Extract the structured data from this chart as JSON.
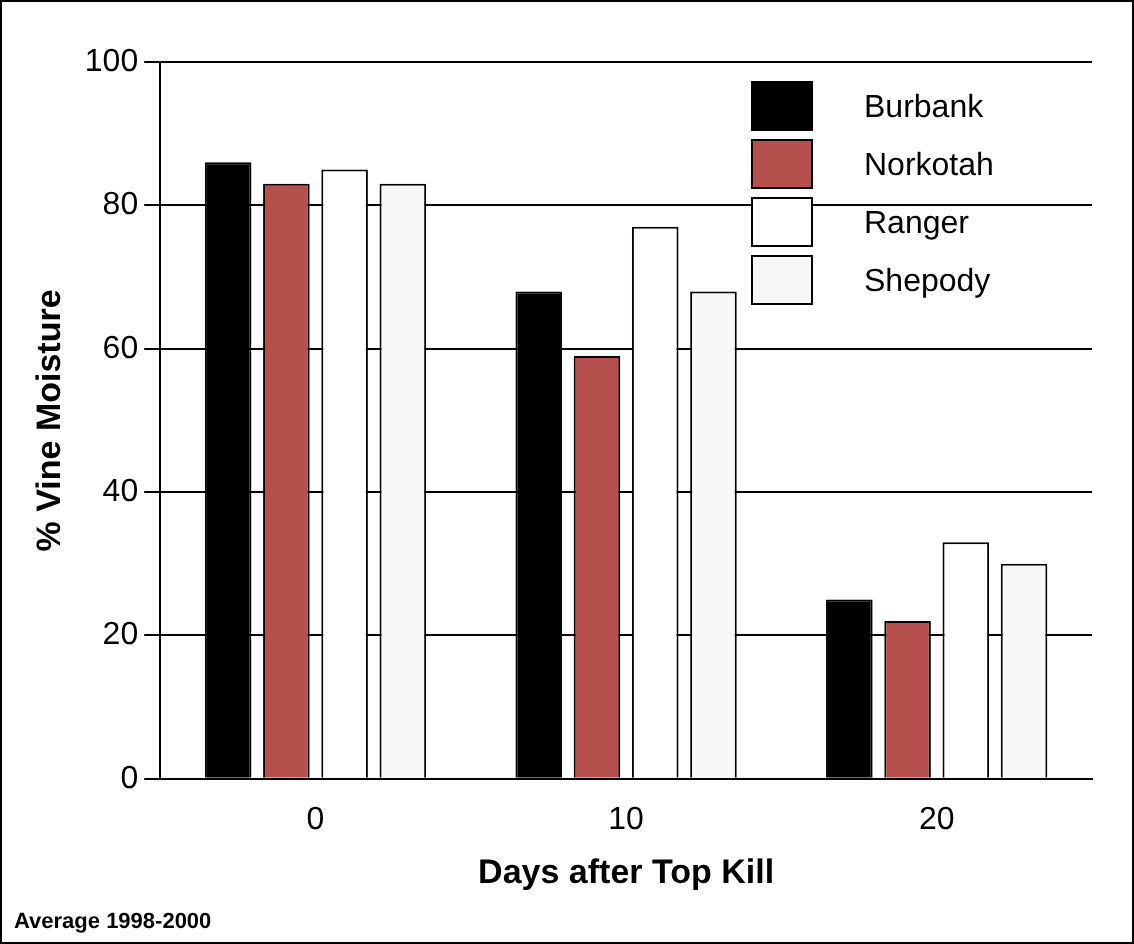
{
  "chart_data": {
    "type": "bar",
    "xlabel": "Days after Top Kill",
    "ylabel": "% Vine Moisture",
    "categories": [
      "0",
      "10",
      "20"
    ],
    "series": [
      {
        "name": "Burbank",
        "color": "#000000",
        "values": [
          86,
          68,
          25
        ]
      },
      {
        "name": "Norkotah",
        "color": "#b5504c",
        "values": [
          83,
          59,
          22
        ]
      },
      {
        "name": "Ranger",
        "color": "#ffffff",
        "values": [
          85,
          77,
          33
        ]
      },
      {
        "name": "Shepody",
        "color": "#f7f7f7",
        "values": [
          83,
          68,
          30
        ]
      }
    ],
    "ylim": [
      0,
      100
    ],
    "yticks": [
      0,
      20,
      40,
      60,
      80,
      100
    ],
    "grid": "y",
    "legend": "top right",
    "annotations": [
      "Average 1998-2000"
    ]
  }
}
